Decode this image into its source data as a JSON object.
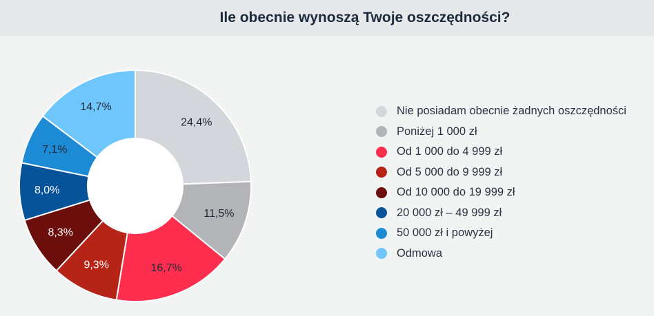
{
  "chart_data": {
    "type": "pie",
    "title": "Ile obecnie wynoszą Twoje oszczędności?",
    "legend_position": "right",
    "slices": [
      {
        "label": "Nie posiadam obecnie żadnych oszczędności",
        "value": 24.4,
        "display": "24,4%",
        "color": "#d3d6da",
        "text_color": "#1f2a38"
      },
      {
        "label": "Poniżej 1 000 zł",
        "value": 11.5,
        "display": "11,5%",
        "color": "#b2b4b7",
        "text_color": "#1f2a38"
      },
      {
        "label": "Od 1 000 do 4 999 zł",
        "value": 16.7,
        "display": "16,7%",
        "color": "#ff2e4f",
        "text_color": "#1f2a38"
      },
      {
        "label": "Od 5 000 do 9 999 zł",
        "value": 9.3,
        "display": "9,3%",
        "color": "#b52417",
        "text_color": "#ffffff"
      },
      {
        "label": "Od 10 000 do 19 999 zł",
        "value": 8.3,
        "display": "8,3%",
        "color": "#6c0f0c",
        "text_color": "#ffffff"
      },
      {
        "label": "20 000 zł – 49 999 zł",
        "value": 8.0,
        "display": "8,0%",
        "color": "#07539a",
        "text_color": "#ffffff"
      },
      {
        "label": "50 000 zł i powyżej",
        "value": 7.1,
        "display": "7,1%",
        "color": "#1d8ad6",
        "text_color": "#1f2a38"
      },
      {
        "label": "Odmowa",
        "value": 14.7,
        "display": "14,7%",
        "color": "#6ec6fb",
        "text_color": "#1f2a38"
      }
    ]
  }
}
